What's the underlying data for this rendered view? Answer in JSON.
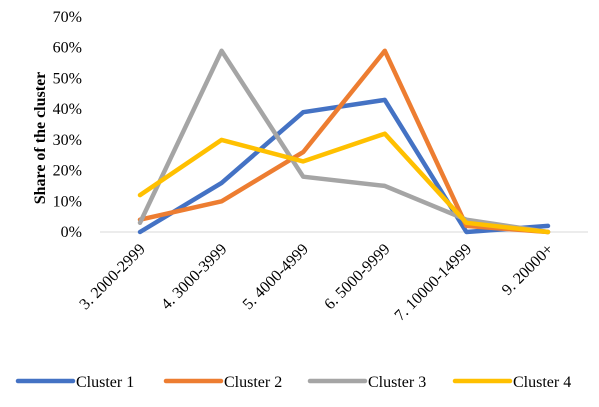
{
  "chart_data": {
    "type": "line",
    "title": "",
    "xlabel": "",
    "ylabel": "Share of the cluster",
    "categories": [
      "3. 2000-2999",
      "4. 3000-3999",
      "5. 4000-4999",
      "6. 5000-9999",
      "7. 10000-14999",
      "9. 20000+"
    ],
    "ylim": [
      0,
      0.7
    ],
    "yticks": [
      "0%",
      "10%",
      "20%",
      "30%",
      "40%",
      "50%",
      "60%",
      "70%"
    ],
    "grid": false,
    "legend_position": "bottom",
    "series": [
      {
        "name": "Cluster 1",
        "color": "#4472C4",
        "values": [
          0.0,
          0.16,
          0.39,
          0.43,
          0.0,
          0.02
        ]
      },
      {
        "name": "Cluster 2",
        "color": "#ED7D31",
        "values": [
          0.04,
          0.1,
          0.26,
          0.59,
          0.02,
          0.0
        ]
      },
      {
        "name": "Cluster 3",
        "color": "#A5A5A5",
        "values": [
          0.03,
          0.59,
          0.18,
          0.15,
          0.04,
          0.0
        ]
      },
      {
        "name": "Cluster 4",
        "color": "#FFC000",
        "values": [
          0.12,
          0.3,
          0.23,
          0.32,
          0.03,
          0.0
        ]
      }
    ]
  }
}
